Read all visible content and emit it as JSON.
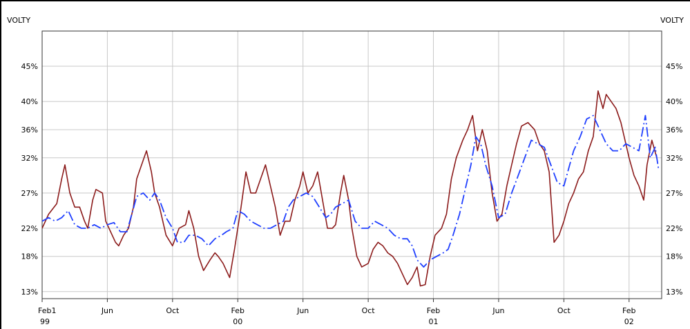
{
  "chart_data": {
    "type": "line",
    "y_axis_title_left": "VOLTY",
    "y_axis_title_right": "VOLTY",
    "y_ticks": [
      {
        "label": "13%",
        "value": 13
      },
      {
        "label": "18%",
        "value": 18
      },
      {
        "label": "22%",
        "value": 22
      },
      {
        "label": "27%",
        "value": 27
      },
      {
        "label": "32%",
        "value": 32
      },
      {
        "label": "36%",
        "value": 36
      },
      {
        "label": "40%",
        "value": 40
      },
      {
        "label": "45%",
        "value": 45
      }
    ],
    "ylim": [
      12,
      50
    ],
    "xlim": [
      0,
      38
    ],
    "x_ticks": [
      {
        "m": 0,
        "line1": "Feb1",
        "line2": "99"
      },
      {
        "m": 4,
        "line1": "Jun",
        "line2": ""
      },
      {
        "m": 8,
        "line1": "Oct",
        "line2": ""
      },
      {
        "m": 12,
        "line1": "Feb",
        "line2": "00"
      },
      {
        "m": 16,
        "line1": "Jun",
        "line2": ""
      },
      {
        "m": 20,
        "line1": "Oct",
        "line2": ""
      },
      {
        "m": 24,
        "line1": "Feb",
        "line2": "01"
      },
      {
        "m": 28,
        "line1": "Jun",
        "line2": ""
      },
      {
        "m": 32,
        "line1": "Oct",
        "line2": ""
      },
      {
        "m": 36,
        "line1": "Feb",
        "line2": "02"
      }
    ],
    "grid": true,
    "series": [
      {
        "color": "#8b1a1a",
        "style": "solid",
        "points": [
          [
            0,
            22
          ],
          [
            0.4,
            24
          ],
          [
            0.9,
            25.5
          ],
          [
            1.2,
            29
          ],
          [
            1.4,
            31
          ],
          [
            1.7,
            27
          ],
          [
            2.0,
            25
          ],
          [
            2.3,
            25
          ],
          [
            2.6,
            23
          ],
          [
            2.8,
            22
          ],
          [
            3.1,
            26
          ],
          [
            3.3,
            27.5
          ],
          [
            3.7,
            27
          ],
          [
            3.9,
            23
          ],
          [
            4.1,
            22
          ],
          [
            4.5,
            20
          ],
          [
            4.7,
            19.5
          ],
          [
            5.0,
            21
          ],
          [
            5.3,
            22
          ],
          [
            5.6,
            25
          ],
          [
            5.8,
            29
          ],
          [
            6.1,
            31
          ],
          [
            6.4,
            33
          ],
          [
            6.7,
            30
          ],
          [
            6.9,
            27
          ],
          [
            7.2,
            25
          ],
          [
            7.6,
            21
          ],
          [
            8.0,
            19.5
          ],
          [
            8.4,
            22
          ],
          [
            8.8,
            22.5
          ],
          [
            9.0,
            24.5
          ],
          [
            9.3,
            22
          ],
          [
            9.6,
            18
          ],
          [
            9.9,
            16
          ],
          [
            10.3,
            17.5
          ],
          [
            10.6,
            18.5
          ],
          [
            10.8,
            18
          ],
          [
            11.1,
            17
          ],
          [
            11.5,
            15
          ],
          [
            11.8,
            19
          ],
          [
            12.2,
            25
          ],
          [
            12.5,
            30
          ],
          [
            12.8,
            27
          ],
          [
            13.1,
            27
          ],
          [
            13.4,
            29
          ],
          [
            13.7,
            31
          ],
          [
            14.0,
            28
          ],
          [
            14.3,
            25
          ],
          [
            14.6,
            21
          ],
          [
            14.9,
            23
          ],
          [
            15.2,
            23
          ],
          [
            15.5,
            26
          ],
          [
            15.8,
            28
          ],
          [
            16.0,
            30
          ],
          [
            16.3,
            27
          ],
          [
            16.6,
            28
          ],
          [
            16.9,
            30
          ],
          [
            17.2,
            26
          ],
          [
            17.5,
            22
          ],
          [
            17.8,
            22
          ],
          [
            18.0,
            22.5
          ],
          [
            18.3,
            27
          ],
          [
            18.5,
            29.5
          ],
          [
            18.8,
            26
          ],
          [
            19.0,
            22
          ],
          [
            19.3,
            18
          ],
          [
            19.6,
            16.5
          ],
          [
            20.0,
            17
          ],
          [
            20.3,
            19
          ],
          [
            20.6,
            20
          ],
          [
            20.9,
            19.5
          ],
          [
            21.2,
            18.5
          ],
          [
            21.5,
            18
          ],
          [
            21.8,
            17
          ],
          [
            22.1,
            15.5
          ],
          [
            22.4,
            14
          ],
          [
            22.7,
            15
          ],
          [
            23.0,
            16.5
          ],
          [
            23.2,
            13.8
          ],
          [
            23.5,
            14
          ],
          [
            23.8,
            18
          ],
          [
            24.1,
            21
          ],
          [
            24.5,
            22
          ],
          [
            24.8,
            24
          ],
          [
            25.1,
            29
          ],
          [
            25.4,
            32
          ],
          [
            25.8,
            34.5
          ],
          [
            26.1,
            36
          ],
          [
            26.4,
            38
          ],
          [
            26.7,
            33
          ],
          [
            27.0,
            36
          ],
          [
            27.3,
            33
          ],
          [
            27.6,
            27
          ],
          [
            27.9,
            23
          ],
          [
            28.2,
            24
          ],
          [
            28.5,
            28
          ],
          [
            28.8,
            31
          ],
          [
            29.1,
            34
          ],
          [
            29.4,
            36.5
          ],
          [
            29.8,
            37
          ],
          [
            30.2,
            36
          ],
          [
            30.5,
            34
          ],
          [
            30.8,
            33
          ],
          [
            31.1,
            30
          ],
          [
            31.4,
            20
          ],
          [
            31.7,
            21
          ],
          [
            32.0,
            23
          ],
          [
            32.3,
            25.5
          ],
          [
            32.6,
            27
          ],
          [
            32.9,
            29
          ],
          [
            33.2,
            30
          ],
          [
            33.5,
            33
          ],
          [
            33.8,
            35
          ],
          [
            34.1,
            41.5
          ],
          [
            34.4,
            39
          ],
          [
            34.6,
            41
          ],
          [
            34.9,
            40
          ],
          [
            35.2,
            39
          ],
          [
            35.5,
            37
          ],
          [
            35.7,
            35
          ],
          [
            36.0,
            32
          ],
          [
            36.3,
            29.5
          ],
          [
            36.6,
            28
          ],
          [
            36.9,
            26
          ],
          [
            37.1,
            31
          ],
          [
            37.4,
            34.5
          ],
          [
            37.7,
            32
          ]
        ]
      },
      {
        "color": "#1f3fff",
        "style": "dashdot",
        "points": [
          [
            0,
            23
          ],
          [
            0.4,
            23.5
          ],
          [
            0.8,
            23
          ],
          [
            1.2,
            23.5
          ],
          [
            1.6,
            24.5
          ],
          [
            2.0,
            22.5
          ],
          [
            2.4,
            22
          ],
          [
            2.8,
            22
          ],
          [
            3.2,
            22.5
          ],
          [
            3.6,
            22
          ],
          [
            4.0,
            22.5
          ],
          [
            4.4,
            22.8
          ],
          [
            4.8,
            21.5
          ],
          [
            5.2,
            21.5
          ],
          [
            5.5,
            24
          ],
          [
            5.8,
            26.5
          ],
          [
            6.2,
            27
          ],
          [
            6.6,
            26
          ],
          [
            6.9,
            27
          ],
          [
            7.2,
            26
          ],
          [
            7.6,
            23.5
          ],
          [
            8.0,
            22
          ],
          [
            8.3,
            20
          ],
          [
            8.7,
            20
          ],
          [
            9.0,
            21
          ],
          [
            9.4,
            21
          ],
          [
            9.8,
            20.5
          ],
          [
            10.2,
            19.5
          ],
          [
            10.6,
            20.5
          ],
          [
            11.0,
            21
          ],
          [
            11.3,
            21.5
          ],
          [
            11.7,
            22
          ],
          [
            12.0,
            24.5
          ],
          [
            12.4,
            24
          ],
          [
            12.8,
            23
          ],
          [
            13.2,
            22.5
          ],
          [
            13.6,
            22
          ],
          [
            14.0,
            22
          ],
          [
            14.4,
            22.5
          ],
          [
            14.8,
            23
          ],
          [
            15.1,
            25
          ],
          [
            15.4,
            26
          ],
          [
            15.8,
            26.5
          ],
          [
            16.2,
            27
          ],
          [
            16.6,
            26.5
          ],
          [
            17.0,
            25
          ],
          [
            17.4,
            23.5
          ],
          [
            17.7,
            24
          ],
          [
            18.0,
            25
          ],
          [
            18.4,
            25.5
          ],
          [
            18.8,
            26
          ],
          [
            19.2,
            23
          ],
          [
            19.6,
            22
          ],
          [
            20.0,
            22
          ],
          [
            20.4,
            23
          ],
          [
            20.8,
            22.5
          ],
          [
            21.2,
            22
          ],
          [
            21.6,
            21
          ],
          [
            22.0,
            20.5
          ],
          [
            22.4,
            20.5
          ],
          [
            22.7,
            19.5
          ],
          [
            23.0,
            17.5
          ],
          [
            23.4,
            16.5
          ],
          [
            23.8,
            17.5
          ],
          [
            24.2,
            18
          ],
          [
            24.6,
            18.5
          ],
          [
            24.9,
            19
          ],
          [
            25.2,
            21
          ],
          [
            25.6,
            24
          ],
          [
            26.0,
            28
          ],
          [
            26.3,
            31
          ],
          [
            26.6,
            35
          ],
          [
            26.9,
            34
          ],
          [
            27.2,
            31
          ],
          [
            27.6,
            28
          ],
          [
            28.0,
            23.5
          ],
          [
            28.4,
            24
          ],
          [
            28.8,
            27
          ],
          [
            29.2,
            29.5
          ],
          [
            29.6,
            32
          ],
          [
            30.0,
            34.5
          ],
          [
            30.4,
            34
          ],
          [
            30.8,
            33.5
          ],
          [
            31.2,
            31
          ],
          [
            31.6,
            28.5
          ],
          [
            32.0,
            28
          ],
          [
            32.3,
            30.5
          ],
          [
            32.6,
            33
          ],
          [
            33.0,
            35
          ],
          [
            33.4,
            37.5
          ],
          [
            33.8,
            38
          ],
          [
            34.2,
            36
          ],
          [
            34.6,
            34
          ],
          [
            35.0,
            33
          ],
          [
            35.4,
            33
          ],
          [
            35.8,
            34
          ],
          [
            36.2,
            33.5
          ],
          [
            36.6,
            33
          ],
          [
            37.0,
            38
          ],
          [
            37.3,
            32
          ],
          [
            37.6,
            33.5
          ],
          [
            37.8,
            30.5
          ]
        ]
      }
    ]
  }
}
